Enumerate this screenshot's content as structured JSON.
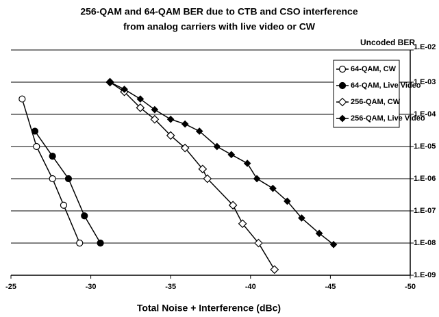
{
  "chart_data": {
    "type": "line",
    "title": [
      "256-QAM and 64-QAM BER due to CTB and CSO interference",
      "from analog carriers with live video or CW"
    ],
    "x_label": "Total Noise + Interference (dBc)",
    "y_label": "Uncoded BER",
    "log_y": true,
    "grid": true,
    "legend": "upper right",
    "xlim": [
      -25,
      -50
    ],
    "xticks": [
      -25,
      -30,
      -35,
      -40,
      -45,
      -50
    ],
    "ylim": [
      1e-09,
      0.01
    ],
    "yticks": [
      {
        "value": 1e-09,
        "label": "1.E-09"
      },
      {
        "value": 1e-08,
        "label": "1.E-08"
      },
      {
        "value": 1e-07,
        "label": "1.E-07"
      },
      {
        "value": 1e-06,
        "label": "1.E-06"
      },
      {
        "value": 1e-05,
        "label": "1.E-05"
      },
      {
        "value": 0.0001,
        "label": "1.E-04"
      },
      {
        "value": 0.001,
        "label": "1.E-03"
      },
      {
        "value": 0.01,
        "label": "1.E-02"
      }
    ],
    "series": [
      {
        "name": "64-QAM, CW",
        "color": "#000000",
        "marker": "circle-open",
        "x": [
          -25.7,
          -26.6,
          -27.6,
          -28.3,
          -29.3
        ],
        "values": [
          0.0003,
          1e-05,
          1e-06,
          1.5e-07,
          1e-08
        ]
      },
      {
        "name": "64-QAM, Live Video",
        "color": "#000000",
        "marker": "circle-filled",
        "x": [
          -26.5,
          -27.6,
          -28.6,
          -29.6,
          -30.6
        ],
        "values": [
          3e-05,
          5e-06,
          1e-06,
          7e-08,
          1e-08
        ]
      },
      {
        "name": "256-QAM, CW",
        "color": "#000000",
        "marker": "diamond-open",
        "x": [
          -31.2,
          -32.1,
          -33.1,
          -34.0,
          -35.0,
          -35.9,
          -37.0,
          -37.3,
          -38.9,
          -39.5,
          -40.5,
          -41.5
        ],
        "values": [
          0.001,
          0.0005,
          0.00016,
          7e-05,
          2.2e-05,
          9e-06,
          2e-06,
          1e-06,
          1.5e-07,
          4e-08,
          1e-08,
          1.5e-09
        ]
      },
      {
        "name": "256-QAM, Live Video",
        "color": "#000000",
        "marker": "diamond-filled",
        "x": [
          -31.2,
          -32.1,
          -33.1,
          -34.0,
          -35.0,
          -35.9,
          -36.8,
          -37.9,
          -38.8,
          -39.8,
          -40.4,
          -41.4,
          -42.3,
          -43.2,
          -44.3,
          -45.2
        ],
        "values": [
          0.001,
          0.0006,
          0.0003,
          0.00014,
          7e-05,
          5e-05,
          3e-05,
          1e-05,
          5.6e-06,
          3e-06,
          1e-06,
          5e-07,
          2e-07,
          6e-08,
          2e-08,
          9e-09
        ]
      }
    ]
  }
}
